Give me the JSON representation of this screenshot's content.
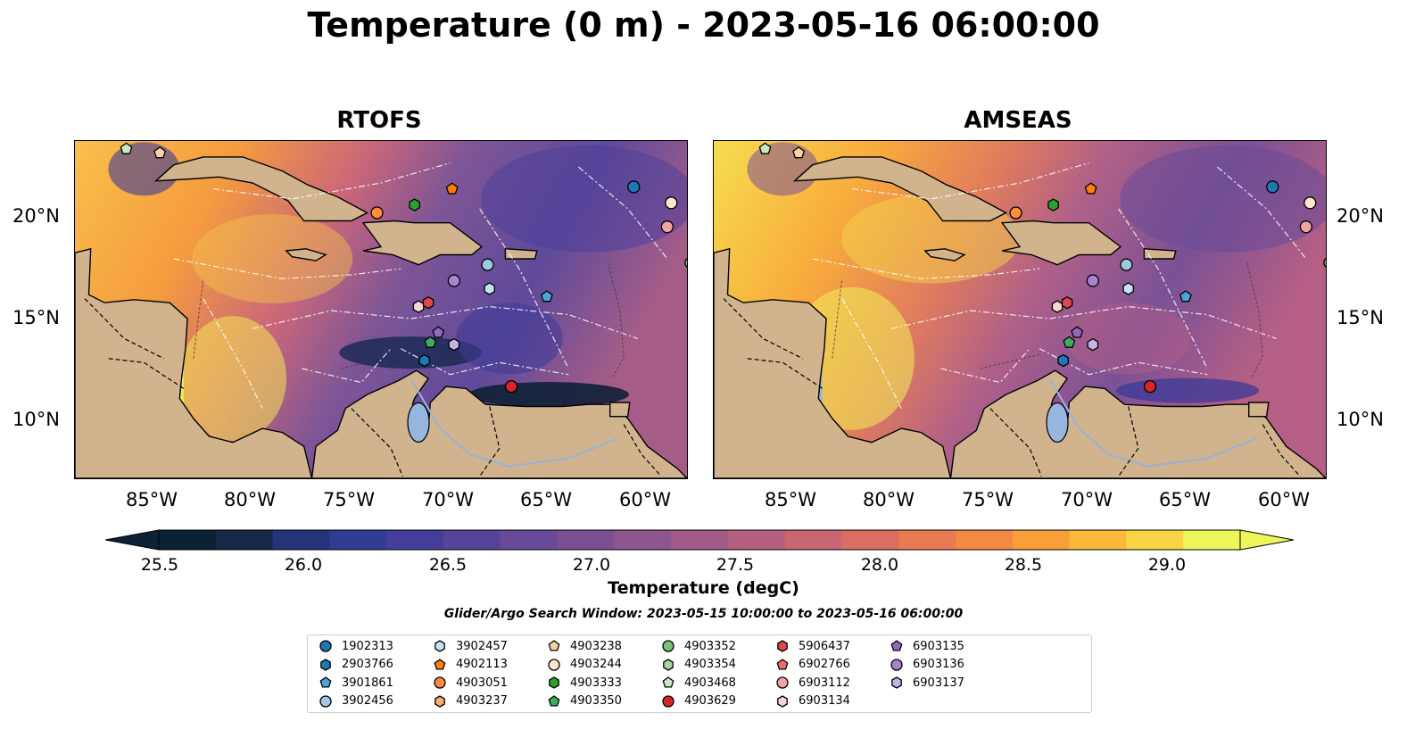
{
  "title": "Temperature (0 m) - 2023-05-16 06:00:00",
  "panels": [
    {
      "title": "RTOFS"
    },
    {
      "title": "AMSEAS"
    }
  ],
  "axes": {
    "lon_labels": [
      "85°W",
      "80°W",
      "75°W",
      "70°W",
      "65°W",
      "60°W"
    ],
    "lat_labels": [
      "20°N",
      "15°N",
      "10°N"
    ]
  },
  "colorbar": {
    "title": "Temperature (degC)",
    "min": 25.25,
    "max": 29.5,
    "step": 0.25,
    "tick_labels": [
      "25.5",
      "26.0",
      "26.5",
      "27.0",
      "27.5",
      "28.0",
      "28.5",
      "29.0"
    ],
    "colors": [
      "#0b2136",
      "#172747",
      "#24337a",
      "#323c95",
      "#443e9a",
      "#55449a",
      "#684a98",
      "#7a5093",
      "#8d568f",
      "#a15b89",
      "#b55f80",
      "#c96674",
      "#db6e63",
      "#ea7a52",
      "#f38943",
      "#f89f3a",
      "#fbb83a",
      "#f8d544",
      "#eef558"
    ],
    "extend": "both"
  },
  "search_window": "Glider/Argo Search Window: 2023-05-15 10:00:00 to 2023-05-16 06:00:00",
  "legend": [
    {
      "id": "1902313",
      "shape": "circle",
      "color": "#1f77b4"
    },
    {
      "id": "2903766",
      "shape": "hexagon",
      "color": "#1f77b4"
    },
    {
      "id": "3901861",
      "shape": "pentagon",
      "color": "#4ba3d6"
    },
    {
      "id": "3902456",
      "shape": "circle",
      "color": "#9ecae1"
    },
    {
      "id": "3902457",
      "shape": "hexagon",
      "color": "#c6e2f5"
    },
    {
      "id": "4902113",
      "shape": "pentagon",
      "color": "#ff7f0e"
    },
    {
      "id": "4903051",
      "shape": "circle",
      "color": "#fd8d3c"
    },
    {
      "id": "4903237",
      "shape": "hexagon",
      "color": "#fdae6b"
    },
    {
      "id": "4903238",
      "shape": "pentagon",
      "color": "#fdd0a2"
    },
    {
      "id": "4903244",
      "shape": "circle",
      "color": "#fee6ce"
    },
    {
      "id": "4903333",
      "shape": "hexagon",
      "color": "#2ca02c"
    },
    {
      "id": "4903350",
      "shape": "pentagon",
      "color": "#41ab5d"
    },
    {
      "id": "4903352",
      "shape": "circle",
      "color": "#74c476"
    },
    {
      "id": "4903354",
      "shape": "hexagon",
      "color": "#a1d99b"
    },
    {
      "id": "4903468",
      "shape": "pentagon",
      "color": "#c7e9c0"
    },
    {
      "id": "4903629",
      "shape": "circle",
      "color": "#d62728"
    },
    {
      "id": "5906437",
      "shape": "hexagon",
      "color": "#e0474c"
    },
    {
      "id": "6902766",
      "shape": "pentagon",
      "color": "#ef6f6c"
    },
    {
      "id": "6903112",
      "shape": "circle",
      "color": "#f4a3a3"
    },
    {
      "id": "6903134",
      "shape": "hexagon",
      "color": "#fbd3d3"
    },
    {
      "id": "6903135",
      "shape": "pentagon",
      "color": "#9467bd"
    },
    {
      "id": "6903136",
      "shape": "circle",
      "color": "#a783d0"
    },
    {
      "id": "6903137",
      "shape": "hexagon",
      "color": "#c8b1e6"
    }
  ],
  "floats": [
    {
      "id": "1902313",
      "lon": -60.7,
      "lat": 21.6
    },
    {
      "id": "2903766",
      "lon": -71.3,
      "lat": 12.9
    },
    {
      "id": "3901861",
      "lon": -65.1,
      "lat": 16.1
    },
    {
      "id": "3902456",
      "lon": -68.1,
      "lat": 17.7
    },
    {
      "id": "3902457",
      "lon": -68.0,
      "lat": 16.5
    },
    {
      "id": "4902113",
      "lon": -69.9,
      "lat": 21.5
    },
    {
      "id": "4903051",
      "lon": -73.7,
      "lat": 20.3
    },
    {
      "id": "4903238",
      "lon": -84.7,
      "lat": 23.3
    },
    {
      "id": "4903244",
      "lon": -58.8,
      "lat": 20.8
    },
    {
      "id": "4903333",
      "lon": -71.8,
      "lat": 20.7
    },
    {
      "id": "4903350",
      "lon": -71.0,
      "lat": 13.8
    },
    {
      "id": "4903352",
      "lon": -57.8,
      "lat": 17.8
    },
    {
      "id": "4903468",
      "lon": -86.4,
      "lat": 23.5
    },
    {
      "id": "4903629",
      "lon": -66.9,
      "lat": 11.6
    },
    {
      "id": "6903112",
      "lon": -59.0,
      "lat": 19.6
    },
    {
      "id": "6903134",
      "lon": -71.6,
      "lat": 15.6
    },
    {
      "id": "5906437",
      "lon": -71.1,
      "lat": 15.8
    },
    {
      "id": "6903135",
      "lon": -70.6,
      "lat": 14.3
    },
    {
      "id": "6903136",
      "lon": -69.8,
      "lat": 16.9
    },
    {
      "id": "6903137",
      "lon": -69.8,
      "lat": 13.7
    }
  ]
}
